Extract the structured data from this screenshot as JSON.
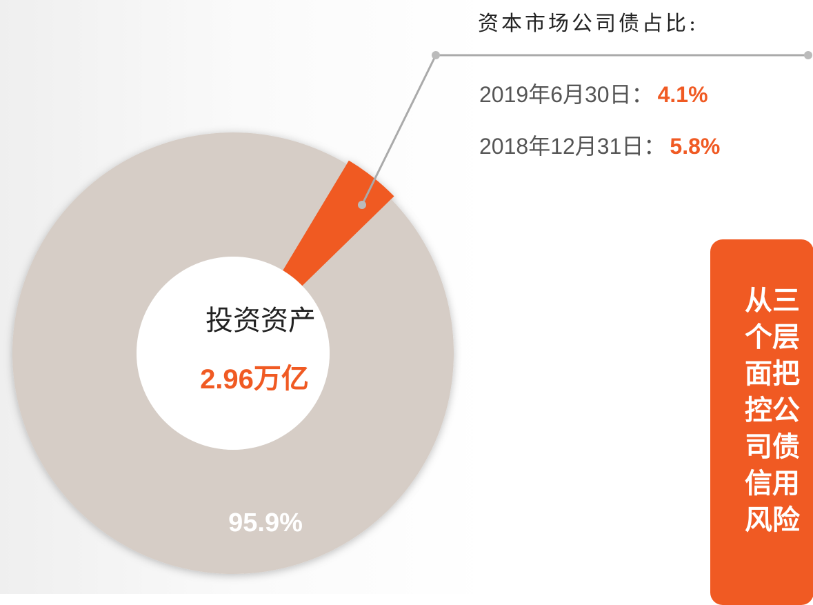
{
  "chart_data": {
    "type": "donut",
    "center_title": "投资资产",
    "center_value": "2.96",
    "center_unit": "万亿",
    "values": [
      4.1,
      95.9
    ],
    "value_labels": [
      "4.1%",
      "95.9%"
    ],
    "colors": [
      "#f05a23",
      "#d6cdc6"
    ],
    "callout": {
      "title": "资本市场公司债占比:",
      "items": [
        {
          "label": "2019年6月30日："
        },
        {
          "label": "2018年12月31日：",
          "value": "5.8%"
        }
      ]
    },
    "side_note": "从三个层面把控公司债信用风险"
  }
}
